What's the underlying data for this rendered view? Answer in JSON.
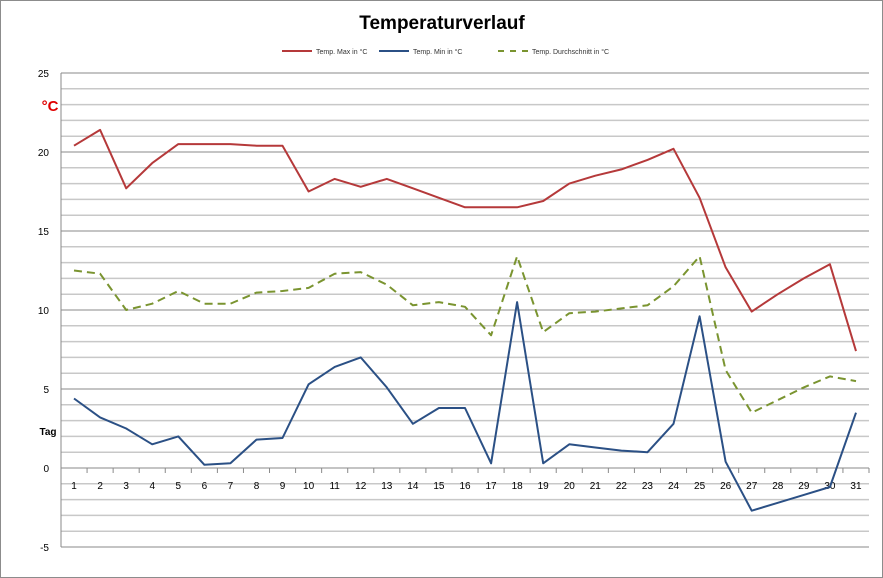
{
  "chart_data": {
    "type": "line",
    "title": "Temperaturverlauf",
    "ylabel": "°C",
    "xlabel": "Tag",
    "ylim": [
      -5,
      25
    ],
    "yticks": [
      -5,
      0,
      5,
      10,
      15,
      20,
      25
    ],
    "grid": "horizontal, every 1 unit",
    "legend_position": "top",
    "x": [
      1,
      2,
      3,
      4,
      5,
      6,
      7,
      8,
      9,
      10,
      11,
      12,
      13,
      14,
      15,
      16,
      17,
      18,
      19,
      20,
      21,
      22,
      23,
      24,
      25,
      26,
      27,
      28,
      29,
      30,
      31
    ],
    "series": [
      {
        "name": "Temp. Max in °C",
        "color": "#b5393a",
        "dash": false,
        "values": [
          20.4,
          21.4,
          17.7,
          19.3,
          20.5,
          20.5,
          20.5,
          20.4,
          20.4,
          17.5,
          18.3,
          17.8,
          18.3,
          17.7,
          17.1,
          16.5,
          16.5,
          16.5,
          16.9,
          18.0,
          18.5,
          18.9,
          19.5,
          20.2,
          17.1,
          12.7,
          9.9,
          11.0,
          12.0,
          12.9,
          7.4
        ]
      },
      {
        "name": "Temp. Min in °C",
        "color": "#2b5085",
        "dash": false,
        "values": [
          4.4,
          3.2,
          2.5,
          1.5,
          2.0,
          0.2,
          0.3,
          1.8,
          1.9,
          5.3,
          6.4,
          7.0,
          5.1,
          2.8,
          3.8,
          3.8,
          0.3,
          10.5,
          0.3,
          1.5,
          1.3,
          1.1,
          1.0,
          2.8,
          9.6,
          0.4,
          -2.7,
          -2.2,
          -1.7,
          -1.2,
          3.5
        ]
      },
      {
        "name": "Temp. Durchschnitt in °C",
        "color": "#7a9430",
        "dash": true,
        "values": [
          12.5,
          12.3,
          10.0,
          10.4,
          11.2,
          10.4,
          10.4,
          11.1,
          11.2,
          11.4,
          12.3,
          12.4,
          11.6,
          10.3,
          10.5,
          10.2,
          8.4,
          13.4,
          8.6,
          9.8,
          9.9,
          10.1,
          10.3,
          11.5,
          13.4,
          6.2,
          3.5,
          4.3,
          5.1,
          5.8,
          5.5
        ]
      }
    ]
  }
}
